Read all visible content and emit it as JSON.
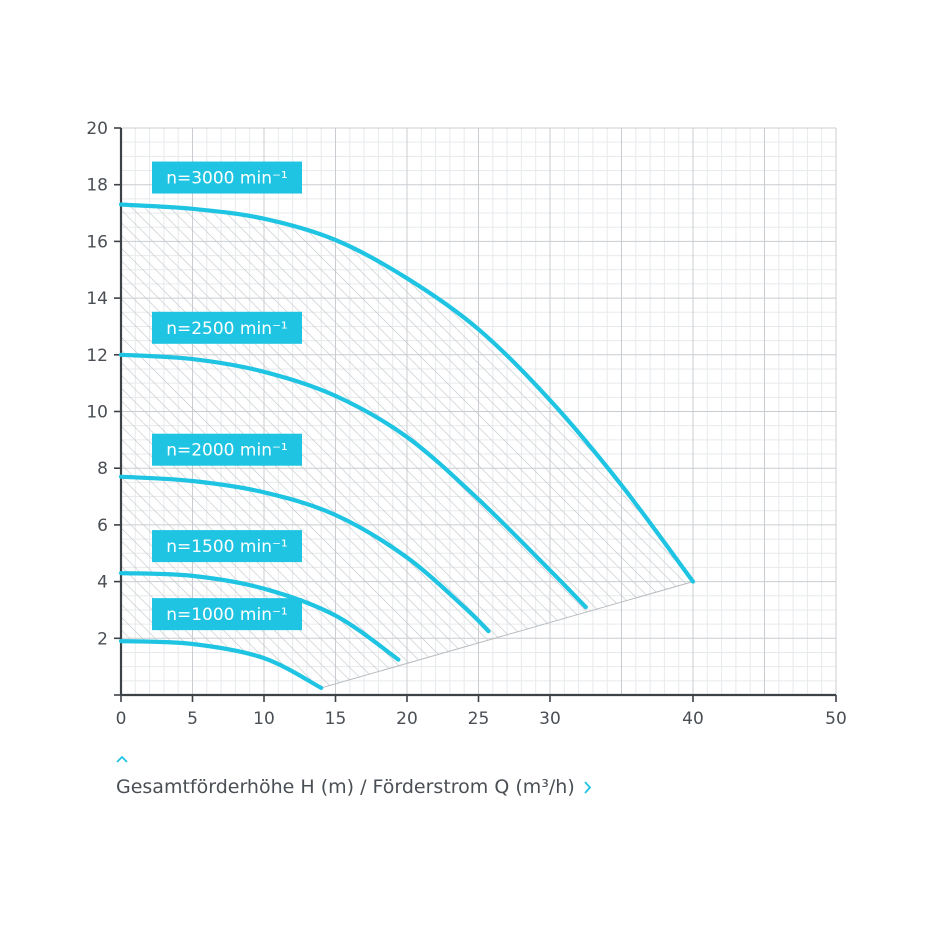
{
  "colors": {
    "curve": "#1fc4e3",
    "axis": "#3d4247",
    "grid_major": "#c9cdd1",
    "grid_minor": "#e7eaec",
    "hatch": "#c2c6ca",
    "text": "#4a4f55"
  },
  "caption": {
    "text": "Gesamtförderhöhe H (m) / Förderstrom Q (m³/h)",
    "up_icon": "chevron-up-icon",
    "right_icon": "chevron-right-icon"
  },
  "chart_data": {
    "type": "line",
    "title": "",
    "xlabel": "",
    "ylabel": "",
    "xlim": [
      0,
      50
    ],
    "ylim": [
      0,
      20
    ],
    "x_ticks": [
      "0",
      "5",
      "10",
      "15",
      "20",
      "25",
      "30",
      "40",
      "50"
    ],
    "y_ticks": [
      "2",
      "4",
      "6",
      "8",
      "10",
      "12",
      "14",
      "16",
      "18",
      "20"
    ],
    "grid": true,
    "operating_region": "hatched area between curves",
    "series": [
      {
        "name": "n=3000 min⁻¹",
        "x": [
          0,
          5,
          10,
          15,
          20,
          25,
          30,
          35,
          40
        ],
        "y": [
          17.3,
          17.15,
          16.8,
          16.05,
          14.7,
          12.9,
          10.4,
          7.4,
          4.0
        ]
      },
      {
        "name": "n=2500 min⁻¹",
        "x": [
          0,
          5,
          10,
          15,
          20,
          25,
          30,
          32.5
        ],
        "y": [
          12.0,
          11.85,
          11.4,
          10.55,
          9.1,
          6.9,
          4.4,
          3.1
        ]
      },
      {
        "name": "n=2000 min⁻¹",
        "x": [
          0,
          5,
          10,
          15,
          20,
          24,
          25.7
        ],
        "y": [
          7.7,
          7.55,
          7.15,
          6.35,
          4.85,
          3.1,
          2.25
        ]
      },
      {
        "name": "n=1500 min⁻¹",
        "x": [
          0,
          5,
          10,
          15,
          19.4
        ],
        "y": [
          4.3,
          4.2,
          3.75,
          2.8,
          1.25
        ]
      },
      {
        "name": "n=1000 min⁻¹",
        "x": [
          0,
          5,
          10,
          14
        ],
        "y": [
          1.9,
          1.8,
          1.3,
          0.25
        ]
      }
    ]
  }
}
